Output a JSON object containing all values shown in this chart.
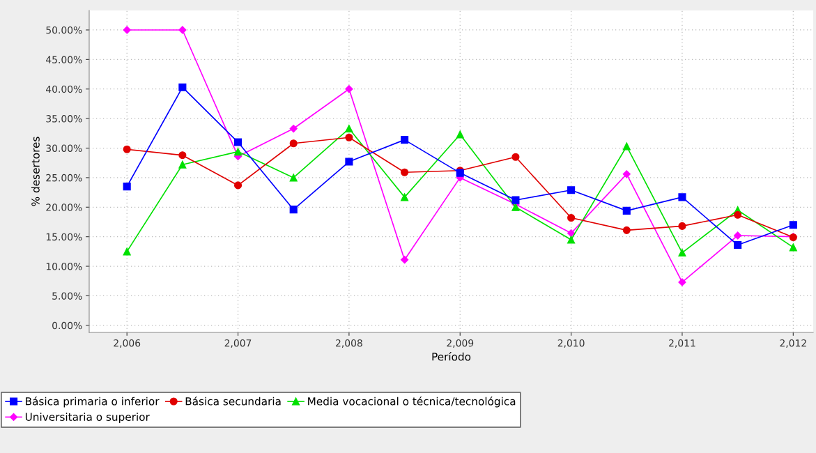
{
  "chart_data": {
    "type": "line",
    "xlabel": "Período",
    "ylabel": "% desertores",
    "x": [
      2006,
      2006.5,
      2007,
      2007.5,
      2008,
      2008.5,
      2009,
      2009.5,
      2010,
      2010.5,
      2011,
      2011.5,
      2012
    ],
    "series": [
      {
        "name": "Básica primaria o inferior",
        "color": "#0000ff",
        "marker": "square",
        "values": [
          23.5,
          40.3,
          31.0,
          19.6,
          27.7,
          31.4,
          25.8,
          21.2,
          22.9,
          19.4,
          21.7,
          13.6,
          17.0
        ]
      },
      {
        "name": "Básica secundaria",
        "color": "#e00000",
        "marker": "circle",
        "values": [
          29.8,
          28.8,
          23.7,
          30.8,
          31.8,
          25.9,
          26.2,
          28.5,
          18.2,
          16.1,
          16.8,
          18.7,
          14.9
        ]
      },
      {
        "name": "Media vocacional o técnica/tecnológica",
        "color": "#00e000",
        "marker": "triangle",
        "values": [
          12.5,
          27.2,
          29.4,
          25.0,
          33.3,
          21.7,
          32.3,
          20.0,
          14.5,
          30.3,
          12.3,
          19.5,
          13.2
        ]
      },
      {
        "name": "Universitaria o superior",
        "color": "#ff00ff",
        "marker": "diamond",
        "values": [
          50.0,
          50.0,
          28.6,
          33.3,
          40.0,
          11.1,
          25.0,
          20.5,
          15.6,
          25.6,
          7.3,
          15.2,
          15.0
        ]
      }
    ],
    "xlim": [
      2005.66,
      2012.18
    ],
    "xticks": [
      {
        "value": 2006,
        "label": "2,006"
      },
      {
        "value": 2007,
        "label": "2,007"
      },
      {
        "value": 2008,
        "label": "2,008"
      },
      {
        "value": 2009,
        "label": "2,009"
      },
      {
        "value": 2010,
        "label": "2,010"
      },
      {
        "value": 2011,
        "label": "2,011"
      },
      {
        "value": 2012,
        "label": "2,012"
      }
    ],
    "ylim": [
      -1.2,
      53.3
    ],
    "yticks": [
      {
        "value": 0,
        "label": "0.00%"
      },
      {
        "value": 5,
        "label": "5.00%"
      },
      {
        "value": 10,
        "label": "10.00%"
      },
      {
        "value": 15,
        "label": "15.00%"
      },
      {
        "value": 20,
        "label": "20.00%"
      },
      {
        "value": 25,
        "label": "25.00%"
      },
      {
        "value": 30,
        "label": "30.00%"
      },
      {
        "value": 35,
        "label": "35.00%"
      },
      {
        "value": 40,
        "label": "40.00%"
      },
      {
        "value": 45,
        "label": "45.00%"
      },
      {
        "value": 50,
        "label": "50.00%"
      }
    ],
    "grid": true,
    "legend": "bottom",
    "line_style": "solid"
  }
}
